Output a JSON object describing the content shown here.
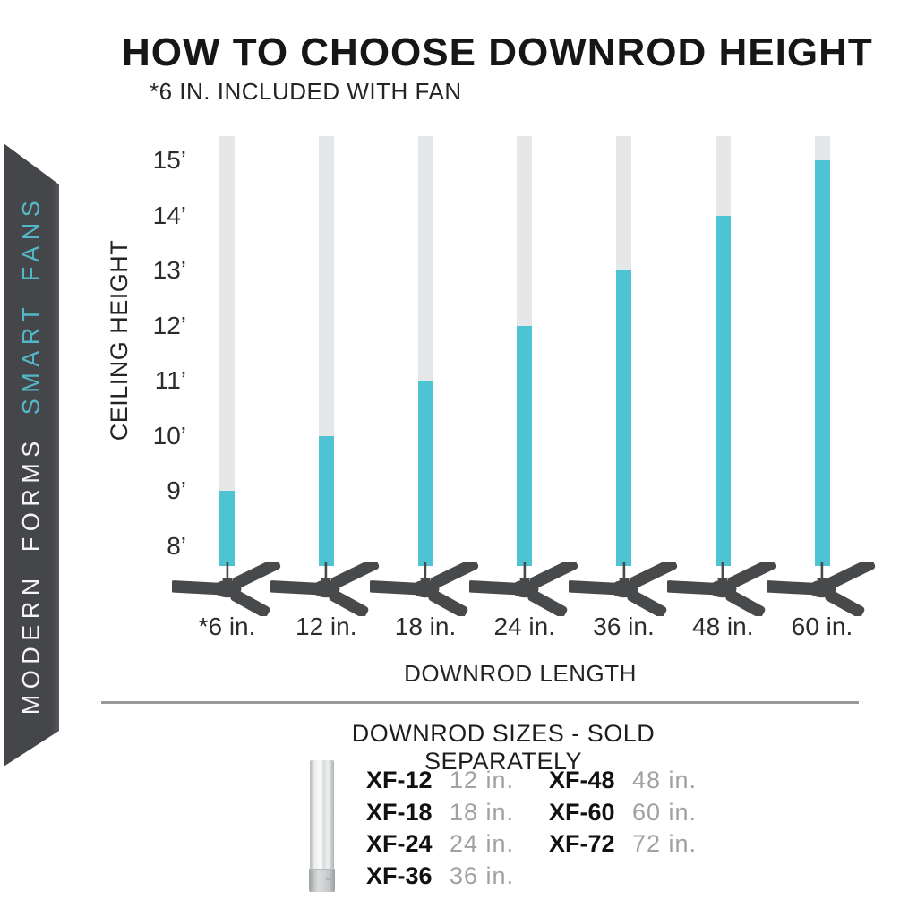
{
  "header": {
    "title": "HOW TO CHOOSE DOWNROD HEIGHT",
    "subtitle": "*6 IN. INCLUDED WITH FAN"
  },
  "ribbon": {
    "brand": "MODERN FORMS",
    "brand_accent": "SMART FANS",
    "bg_color": "#454649",
    "accent_color": "#52B8C7",
    "text_color": "#F4F4F4"
  },
  "chart_data": {
    "type": "bar",
    "categories": [
      "*6 in.",
      "12 in.",
      "18 in.",
      "24 in.",
      "36 in.",
      "48 in.",
      "60 in."
    ],
    "values": [
      9,
      10,
      11,
      12,
      13,
      14,
      15
    ],
    "xlabel": "DOWNROD LENGTH",
    "ylabel": "CEILING HEIGHT",
    "yticks": [
      "15’",
      "14’",
      "13’",
      "12’",
      "11’",
      "10’",
      "9’",
      "8’"
    ],
    "ytick_values": [
      15,
      14,
      13,
      12,
      11,
      10,
      9,
      8
    ],
    "ylim": [
      8,
      15
    ],
    "units": "feet of ceiling height per downrod length",
    "bar_color": "#4EC3D2",
    "rod_color": "#E5E7E8",
    "fan_color": "#48494B",
    "legend_position": "none",
    "grid": false
  },
  "downrods": {
    "title": "DOWNROD SIZES - SOLD SEPARATELY",
    "columns": [
      [
        {
          "model": "XF-12",
          "size": "12 in."
        },
        {
          "model": "XF-18",
          "size": "18 in."
        },
        {
          "model": "XF-24",
          "size": "24 in."
        },
        {
          "model": "XF-36",
          "size": "36 in."
        }
      ],
      [
        {
          "model": "XF-48",
          "size": "48 in."
        },
        {
          "model": "XF-60",
          "size": "60 in."
        },
        {
          "model": "XF-72",
          "size": "72 in."
        }
      ]
    ]
  }
}
